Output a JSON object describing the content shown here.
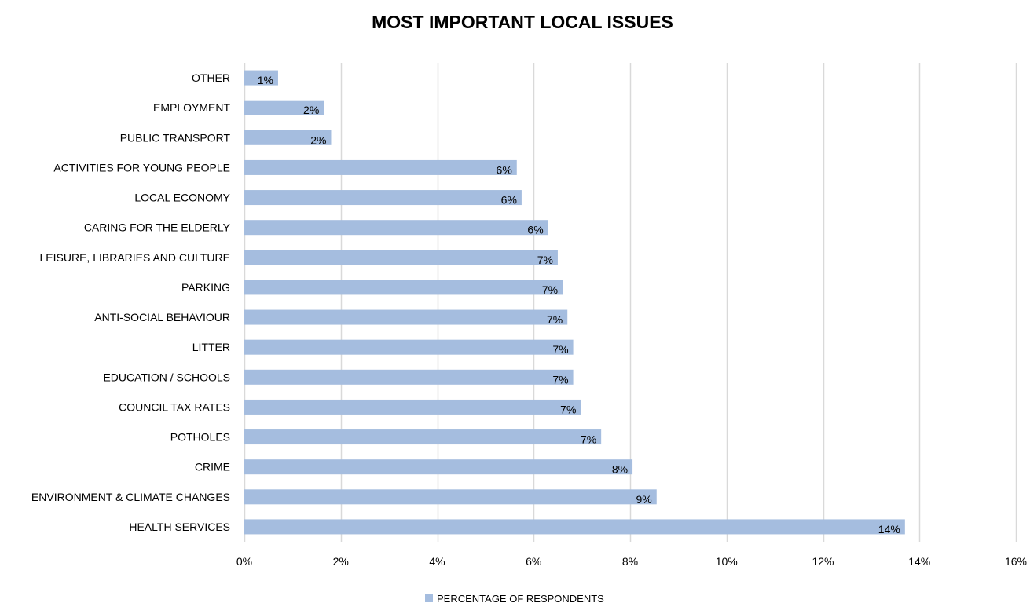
{
  "chart_data": {
    "type": "bar",
    "orientation": "horizontal",
    "title": "MOST IMPORTANT LOCAL ISSUES",
    "categories": [
      "OTHER",
      "EMPLOYMENT",
      "PUBLIC TRANSPORT",
      "ACTIVITIES FOR YOUNG PEOPLE",
      "LOCAL ECONOMY",
      "CARING FOR THE ELDERLY",
      "LEISURE, LIBRARIES AND CULTURE",
      "PARKING",
      "ANTI-SOCIAL BEHAVIOUR",
      "LITTER",
      "EDUCATION / SCHOOLS",
      "COUNCIL TAX RATES",
      "POTHOLES",
      "CRIME",
      "ENVIRONMENT & CLIMATE CHANGES",
      "HEALTH SERVICES"
    ],
    "series": [
      {
        "name": "PERCENTAGE OF RESPONDENTS",
        "values": [
          0.7,
          1.65,
          1.8,
          5.65,
          5.75,
          6.3,
          6.5,
          6.6,
          6.7,
          6.82,
          6.82,
          6.98,
          7.4,
          8.05,
          8.55,
          13.7
        ],
        "labels": [
          "1%",
          "2%",
          "2%",
          "6%",
          "6%",
          "6%",
          "7%",
          "7%",
          "7%",
          "7%",
          "7%",
          "7%",
          "7%",
          "8%",
          "9%",
          "14%"
        ],
        "color": "#a5bddf"
      }
    ],
    "xlim": [
      0,
      16
    ],
    "xticks": [
      0,
      2,
      4,
      6,
      8,
      10,
      12,
      14,
      16
    ],
    "xtick_labels": [
      "0%",
      "2%",
      "4%",
      "6%",
      "8%",
      "10%",
      "12%",
      "14%",
      "16%"
    ],
    "grid": "vertical",
    "gridline_color": "#d9d9d9",
    "legend_position": "bottom"
  }
}
